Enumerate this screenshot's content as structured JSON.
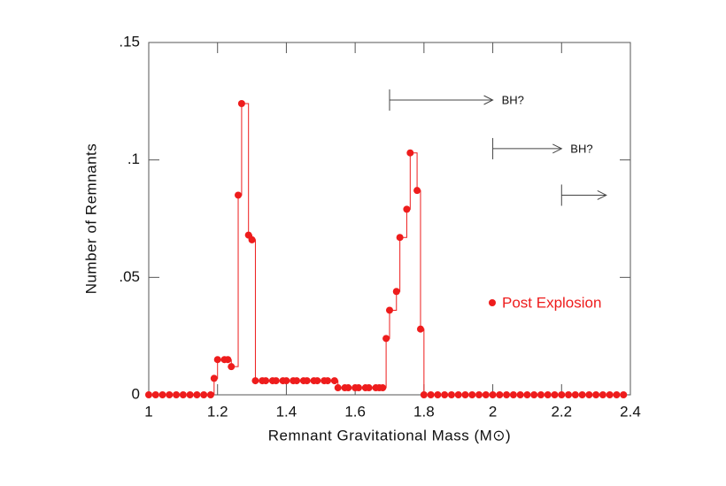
{
  "chart_data": {
    "type": "step-scatter",
    "x_label": "Remnant Gravitational Mass (M⊙)",
    "y_label": "Number of Remnants",
    "xlim": [
      1,
      2.4
    ],
    "ylim": [
      0,
      0.15
    ],
    "xticks": [
      1,
      1.2,
      1.4,
      1.6,
      1.8,
      2,
      2.2,
      2.4
    ],
    "yticks": [
      0,
      {
        "value": 0.05,
        "label": ".05"
      },
      {
        "value": 0.1,
        "label": ".1"
      },
      {
        "value": 0.15,
        "label": ".15"
      }
    ],
    "grid": false,
    "legend": "center-right",
    "series": [
      {
        "name": "Post Explosion",
        "color": "#ee1c1c",
        "x": [
          1,
          1.02,
          1.04,
          1.06,
          1.08,
          1.1,
          1.12,
          1.14,
          1.16,
          1.18,
          1.19,
          1.2,
          1.22,
          1.23,
          1.24,
          1.26,
          1.27,
          1.29,
          1.3,
          1.31,
          1.33,
          1.34,
          1.36,
          1.37,
          1.39,
          1.4,
          1.42,
          1.43,
          1.45,
          1.46,
          1.48,
          1.49,
          1.51,
          1.52,
          1.54,
          1.55,
          1.57,
          1.58,
          1.6,
          1.61,
          1.63,
          1.64,
          1.66,
          1.67,
          1.68,
          1.69,
          1.7,
          1.72,
          1.73,
          1.75,
          1.76,
          1.78,
          1.79,
          1.8,
          1.82,
          1.84,
          1.86,
          1.88,
          1.9,
          1.92,
          1.94,
          1.96,
          1.98,
          2,
          2.02,
          2.04,
          2.06,
          2.08,
          2.1,
          2.12,
          2.14,
          2.16,
          2.18,
          2.2,
          2.22,
          2.24,
          2.26,
          2.28,
          2.3,
          2.32,
          2.34,
          2.36,
          2.38
        ],
        "values": [
          0,
          0,
          0,
          0,
          0,
          0,
          0,
          0,
          0,
          0,
          0.007,
          0.015,
          0.015,
          0.015,
          0.012,
          0.085,
          0.124,
          0.068,
          0.066,
          0.006,
          0.006,
          0.006,
          0.006,
          0.006,
          0.006,
          0.006,
          0.006,
          0.006,
          0.006,
          0.006,
          0.006,
          0.006,
          0.006,
          0.006,
          0.006,
          0.003,
          0.003,
          0.003,
          0.003,
          0.003,
          0.003,
          0.003,
          0.003,
          0.003,
          0.003,
          0.024,
          0.036,
          0.044,
          0.067,
          0.079,
          0.103,
          0.087,
          0.028,
          0,
          0,
          0,
          0,
          0,
          0,
          0,
          0,
          0,
          0,
          0,
          0,
          0,
          0,
          0,
          0,
          0,
          0,
          0,
          0,
          0,
          0,
          0,
          0,
          0,
          0,
          0,
          0,
          0,
          0
        ]
      }
    ],
    "annotations": [
      {
        "x_start": 1.7,
        "x_end": 2.0,
        "y": 0.1255,
        "label": "BH?"
      },
      {
        "x_start": 2.0,
        "x_end": 2.2,
        "y": 0.1048,
        "label": "BH?"
      },
      {
        "x_start": 2.2,
        "x_end": 2.33,
        "y": 0.085
      }
    ]
  }
}
